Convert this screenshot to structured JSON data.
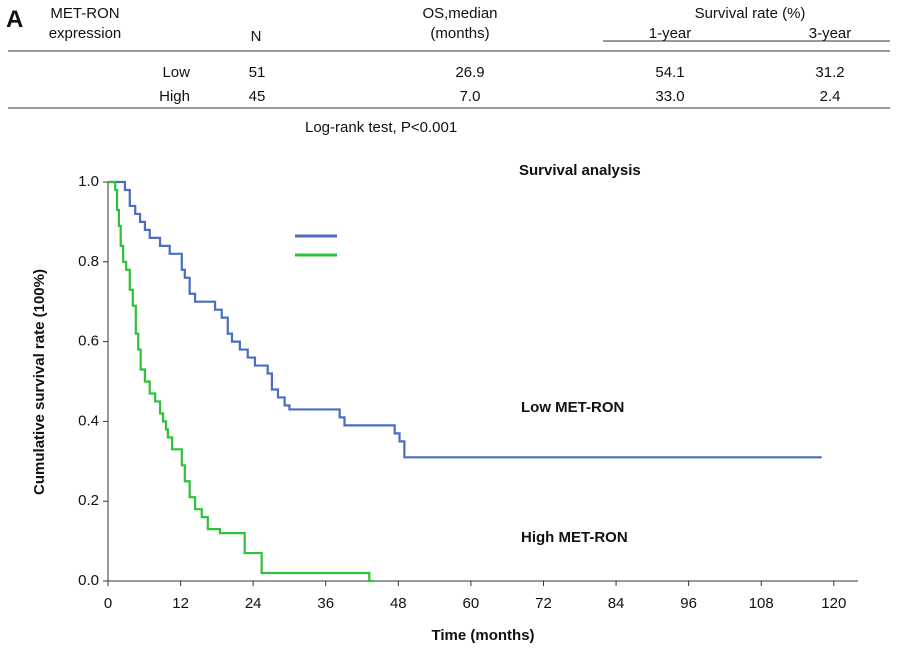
{
  "panel_label": "A",
  "table": {
    "headers": [
      "MET-RON expression",
      "N",
      "OS,median (months)",
      "Survival rate (%)"
    ],
    "subheaders": [
      "1-year",
      "3-year"
    ],
    "rows": [
      [
        "Low",
        "51",
        "26.9",
        "54.1",
        "31.2"
      ],
      [
        "High",
        "45",
        "7.0",
        "33.0",
        "2.4"
      ]
    ],
    "note": "Log-rank test, P<0.001"
  },
  "chart_data": {
    "type": "step",
    "title": "Survival analysis",
    "x_label": "Time (months)",
    "y_label": "Cumulative survival rate (100%)",
    "xlim": [
      0,
      124
    ],
    "ylim": [
      0,
      1
    ],
    "xticks": [
      0,
      12,
      24,
      36,
      48,
      60,
      72,
      84,
      96,
      108,
      120
    ],
    "yticks": [
      {
        "value": 0,
        "label": "0.0"
      },
      {
        "value": 0.2,
        "label": "0.2"
      },
      {
        "value": 0.4,
        "label": "0.4"
      },
      {
        "value": 0.6,
        "label": "0.6"
      },
      {
        "value": 0.8,
        "label": "0.8"
      },
      {
        "value": 1,
        "label": "1.0"
      }
    ],
    "series": [
      {
        "name": "Low MET-RON",
        "color": "#4a6cc2",
        "x": [
          0,
          2.8,
          3.6,
          4.5,
          5.3,
          6.1,
          6.9,
          8.6,
          10.2,
          12.2,
          12.7,
          13.5,
          14.4,
          17.7,
          18.8,
          19.8,
          20.5,
          21.8,
          23.1,
          24.3,
          26.4,
          27.1,
          28.1,
          29.2,
          30.0,
          38.3,
          39.1,
          47.4,
          48.2,
          49.0,
          118
        ],
        "values": [
          1.0,
          0.98,
          0.94,
          0.92,
          0.9,
          0.88,
          0.86,
          0.84,
          0.82,
          0.78,
          0.76,
          0.72,
          0.7,
          0.68,
          0.66,
          0.62,
          0.6,
          0.58,
          0.56,
          0.54,
          0.52,
          0.48,
          0.46,
          0.44,
          0.43,
          0.41,
          0.39,
          0.37,
          0.35,
          0.31,
          0.31
        ]
      },
      {
        "name": "High MET-RON",
        "color": "#2ec13a",
        "x": [
          0,
          1.2,
          1.5,
          1.8,
          2.1,
          2.5,
          3.0,
          3.6,
          4.1,
          4.6,
          5.0,
          5.4,
          6.1,
          6.9,
          7.8,
          8.6,
          9.1,
          9.6,
          9.9,
          10.6,
          12.2,
          12.7,
          13.5,
          14.4,
          15.5,
          16.5,
          18.5,
          22.6,
          25.4,
          43.2,
          43.9
        ],
        "values": [
          1.0,
          0.98,
          0.93,
          0.89,
          0.84,
          0.8,
          0.78,
          0.73,
          0.69,
          0.62,
          0.58,
          0.53,
          0.5,
          0.47,
          0.45,
          0.42,
          0.4,
          0.38,
          0.36,
          0.33,
          0.29,
          0.25,
          0.21,
          0.18,
          0.16,
          0.13,
          0.12,
          0.07,
          0.02,
          0.0,
          0.0
        ]
      }
    ]
  }
}
